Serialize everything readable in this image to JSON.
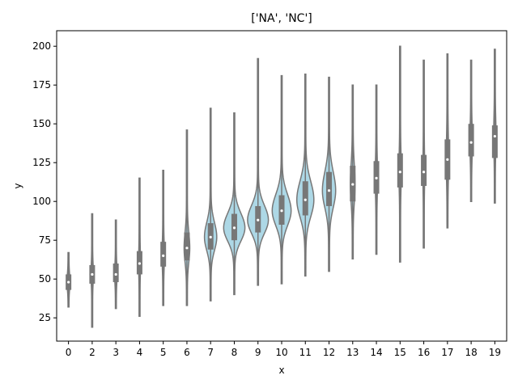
{
  "chart_data": {
    "type": "violin",
    "title": "['NA', 'NC']",
    "xlabel": "x",
    "ylabel": "y",
    "ylim": [
      10,
      210
    ],
    "yticks": [
      25,
      50,
      75,
      100,
      125,
      150,
      175,
      200
    ],
    "grid": false,
    "legend": "none",
    "colors": {
      "violin_fill": "#add8e6",
      "violin_edge": "#777777",
      "box": "#777777",
      "median": "#ffffff",
      "axes": "#000000"
    },
    "categories": [
      "0",
      "2",
      "3",
      "4",
      "5",
      "6",
      "7",
      "8",
      "9",
      "10",
      "11",
      "12",
      "13",
      "14",
      "15",
      "16",
      "17",
      "18",
      "19"
    ],
    "violins": [
      {
        "x": "0",
        "min": 32,
        "q1": 43,
        "median": 48,
        "q3": 53,
        "max": 67,
        "max_density_width": 0.06
      },
      {
        "x": "2",
        "min": 19,
        "q1": 47,
        "median": 53,
        "q3": 59,
        "max": 92,
        "max_density_width": 0.05
      },
      {
        "x": "3",
        "min": 31,
        "q1": 48,
        "median": 53,
        "q3": 60,
        "max": 88,
        "max_density_width": 0.05
      },
      {
        "x": "4",
        "min": 26,
        "q1": 53,
        "median": 60,
        "q3": 68,
        "max": 115,
        "max_density_width": 0.04
      },
      {
        "x": "5",
        "min": 33,
        "q1": 58,
        "median": 65,
        "q3": 74,
        "max": 120,
        "max_density_width": 0.05
      },
      {
        "x": "6",
        "min": 33,
        "q1": 62,
        "median": 70,
        "q3": 80,
        "max": 146,
        "max_density_width": 0.12
      },
      {
        "x": "7",
        "min": 36,
        "q1": 69,
        "median": 77,
        "q3": 86,
        "max": 160,
        "max_density_width": 0.26
      },
      {
        "x": "8",
        "min": 40,
        "q1": 75,
        "median": 83,
        "q3": 92,
        "max": 157,
        "max_density_width": 0.45
      },
      {
        "x": "9",
        "min": 46,
        "q1": 80,
        "median": 88,
        "q3": 97,
        "max": 192,
        "max_density_width": 0.44
      },
      {
        "x": "10",
        "min": 47,
        "q1": 85,
        "median": 94,
        "q3": 104,
        "max": 181,
        "max_density_width": 0.4
      },
      {
        "x": "11",
        "min": 52,
        "q1": 91,
        "median": 101,
        "q3": 113,
        "max": 182,
        "max_density_width": 0.36
      },
      {
        "x": "12",
        "min": 55,
        "q1": 97,
        "median": 107,
        "q3": 119,
        "max": 180,
        "max_density_width": 0.28
      },
      {
        "x": "13",
        "min": 63,
        "q1": 100,
        "median": 111,
        "q3": 123,
        "max": 175,
        "max_density_width": 0.1
      },
      {
        "x": "14",
        "min": 66,
        "q1": 105,
        "median": 115,
        "q3": 126,
        "max": 175,
        "max_density_width": 0.05
      },
      {
        "x": "15",
        "min": 61,
        "q1": 109,
        "median": 119,
        "q3": 131,
        "max": 200,
        "max_density_width": 0.05
      },
      {
        "x": "16",
        "min": 70,
        "q1": 110,
        "median": 119,
        "q3": 130,
        "max": 191,
        "max_density_width": 0.04
      },
      {
        "x": "17",
        "min": 83,
        "q1": 114,
        "median": 127,
        "q3": 140,
        "max": 195,
        "max_density_width": 0.05
      },
      {
        "x": "18",
        "min": 100,
        "q1": 129,
        "median": 138,
        "q3": 150,
        "max": 191,
        "max_density_width": 0.05
      },
      {
        "x": "19",
        "min": 99,
        "q1": 128,
        "median": 142,
        "q3": 149,
        "max": 198,
        "max_density_width": 0.05
      }
    ]
  }
}
